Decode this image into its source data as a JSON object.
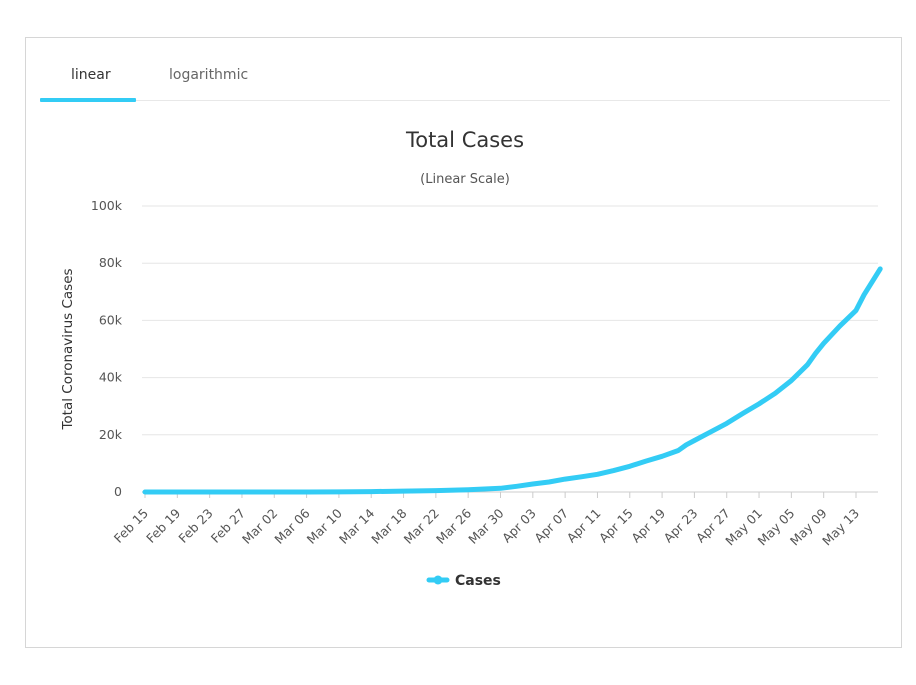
{
  "tabs": [
    {
      "label": "linear",
      "active": true
    },
    {
      "label": "logarithmic",
      "active": false
    }
  ],
  "chart_data": {
    "type": "line",
    "title": "Total Cases",
    "subtitle": "(Linear Scale)",
    "ylabel": "Total Coronavirus Cases",
    "xlabel": "",
    "ylim": [
      0,
      100000
    ],
    "yticks": [
      0,
      20000,
      40000,
      60000,
      80000,
      100000
    ],
    "ytick_labels": [
      "0",
      "20k",
      "40k",
      "60k",
      "80k",
      "100k"
    ],
    "x_tick_labels": [
      "Feb 15",
      "Feb 19",
      "Feb 23",
      "Feb 27",
      "Mar 02",
      "Mar 06",
      "Mar 10",
      "Mar 14",
      "Mar 18",
      "Mar 22",
      "Mar 26",
      "Mar 30",
      "Apr 03",
      "Apr 07",
      "Apr 11",
      "Apr 15",
      "Apr 19",
      "Apr 23",
      "Apr 27",
      "May 01",
      "May 05",
      "May 09",
      "May 13"
    ],
    "grid": true,
    "legend": "bottom-center",
    "color": "#33ccf5",
    "series": [
      {
        "name": "Cases",
        "points": [
          [
            "Feb 15",
            0
          ],
          [
            "Feb 19",
            0
          ],
          [
            "Feb 23",
            0
          ],
          [
            "Feb 27",
            0
          ],
          [
            "Mar 02",
            0
          ],
          [
            "Mar 06",
            0
          ],
          [
            "Mar 10",
            50
          ],
          [
            "Mar 14",
            150
          ],
          [
            "Mar 18",
            300
          ],
          [
            "Mar 22",
            500
          ],
          [
            "Mar 26",
            800
          ],
          [
            "Mar 30",
            1300
          ],
          [
            "Apr 01",
            2000
          ],
          [
            "Apr 03",
            2800
          ],
          [
            "Apr 05",
            3500
          ],
          [
            "Apr 07",
            4500
          ],
          [
            "Apr 09",
            5300
          ],
          [
            "Apr 11",
            6200
          ],
          [
            "Apr 13",
            7500
          ],
          [
            "Apr 15",
            9000
          ],
          [
            "Apr 17",
            10800
          ],
          [
            "Apr 19",
            12500
          ],
          [
            "Apr 21",
            14500
          ],
          [
            "Apr 22",
            16500
          ],
          [
            "Apr 23",
            18000
          ],
          [
            "Apr 25",
            21000
          ],
          [
            "Apr 27",
            24000
          ],
          [
            "Apr 29",
            27500
          ],
          [
            "May 01",
            30800
          ],
          [
            "May 03",
            34500
          ],
          [
            "May 05",
            39000
          ],
          [
            "May 07",
            44500
          ],
          [
            "May 08",
            48500
          ],
          [
            "May 09",
            52000
          ],
          [
            "May 11",
            58000
          ],
          [
            "May 13",
            63500
          ],
          [
            "May 14",
            69000
          ],
          [
            "May 16",
            78000
          ]
        ]
      }
    ]
  }
}
